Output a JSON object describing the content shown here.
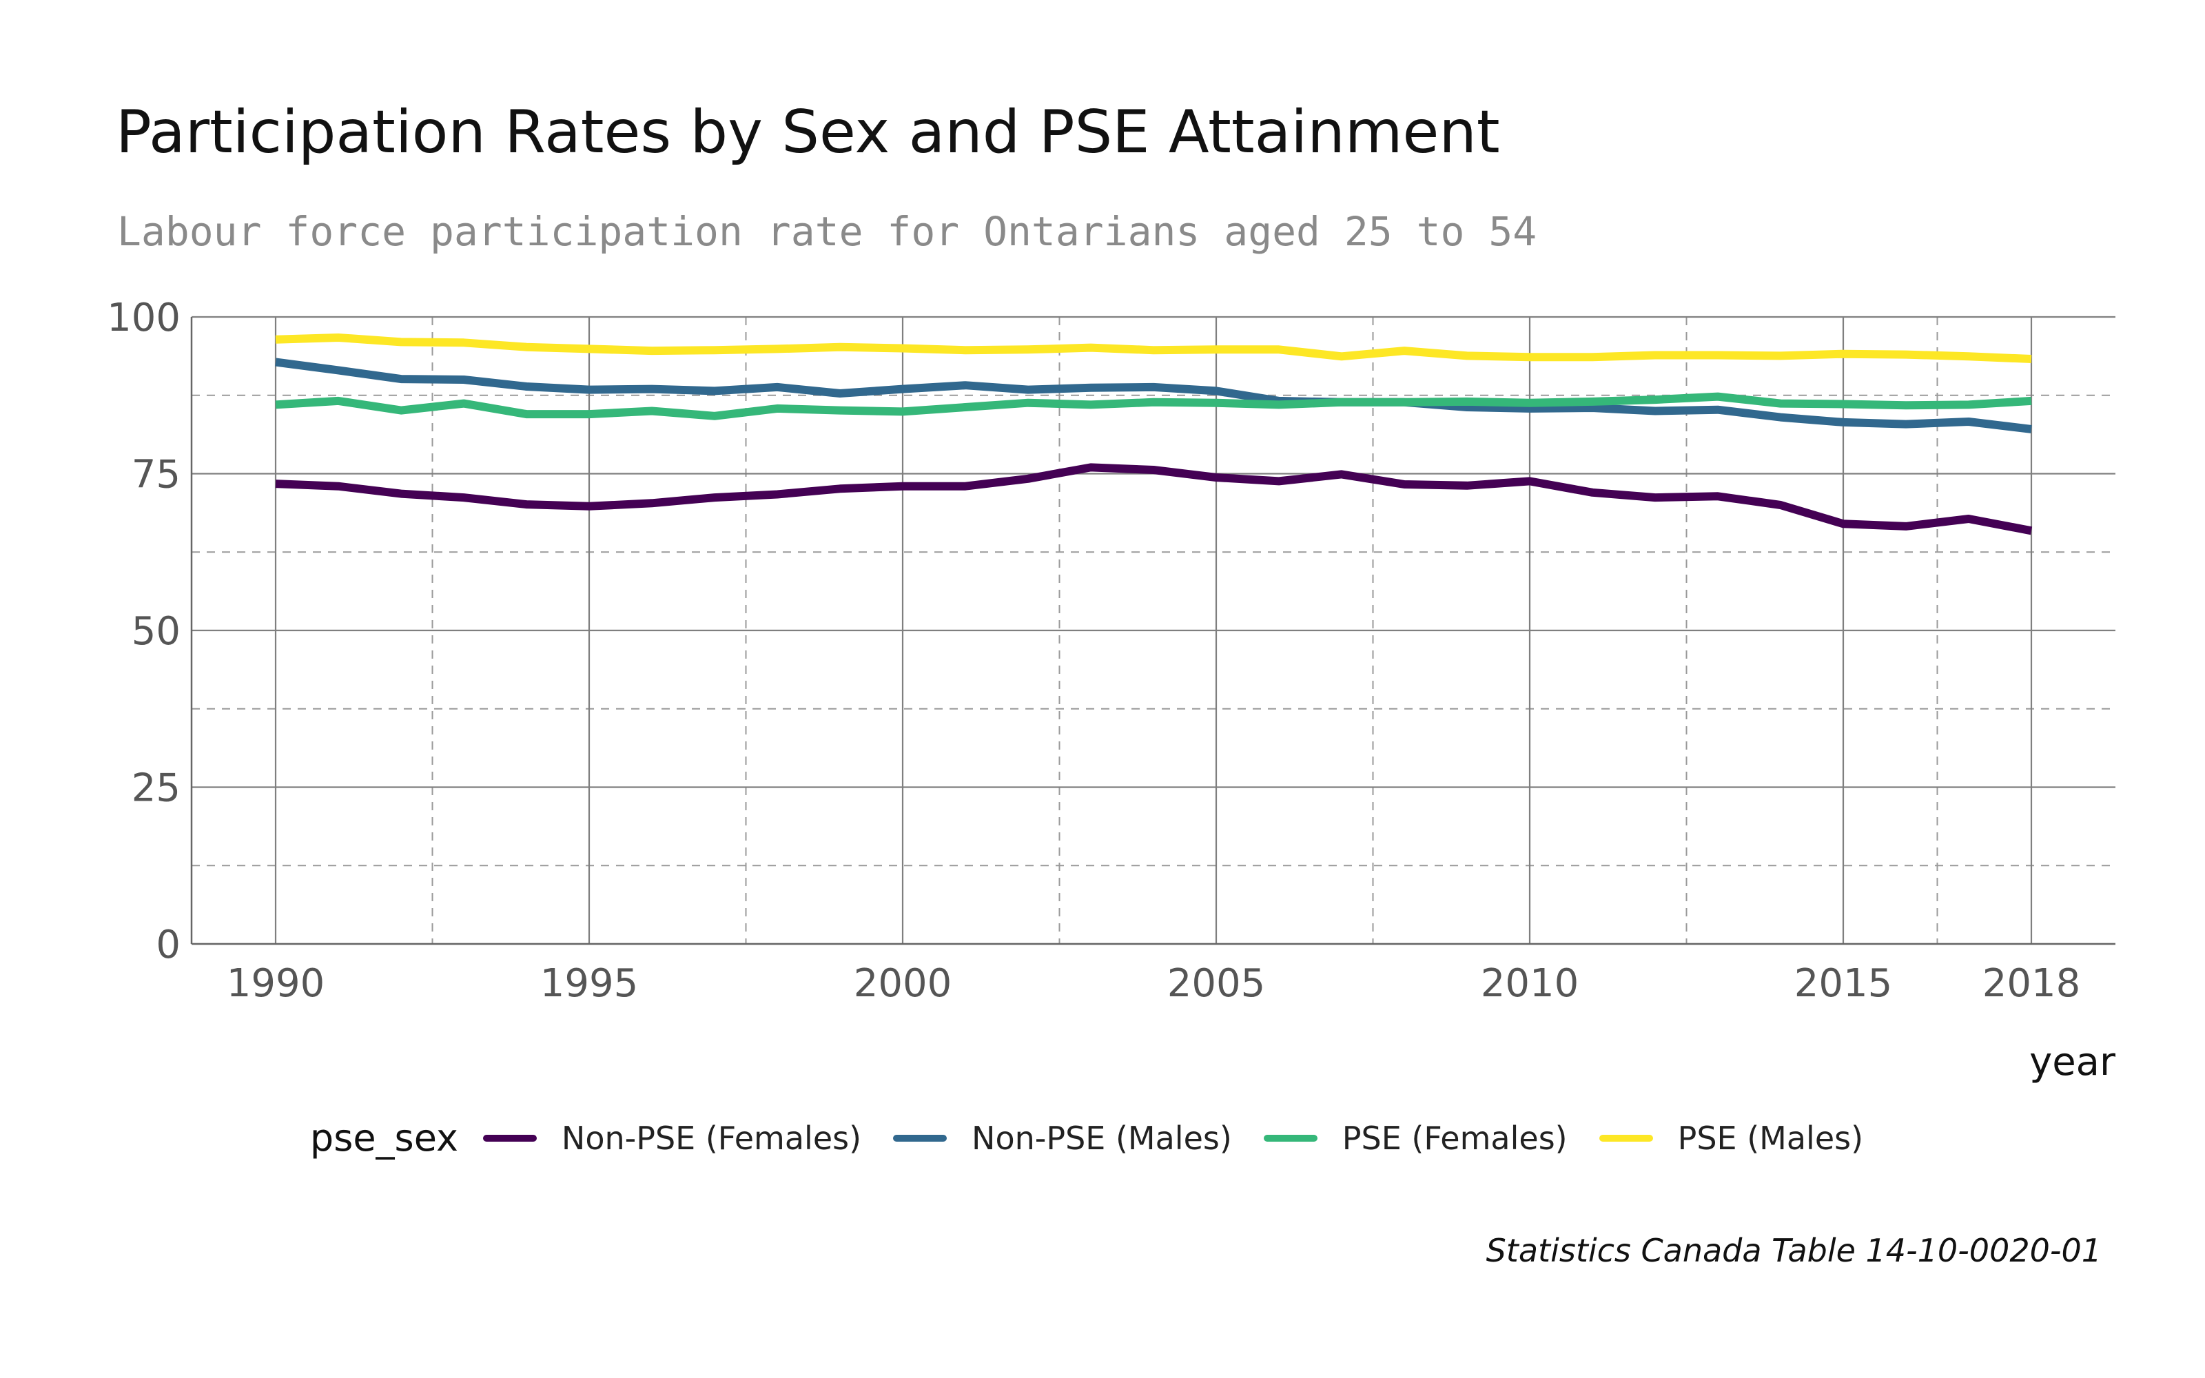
{
  "title": "Participation Rates by Sex and PSE Attainment",
  "subtitle": "Labour force participation rate for Ontarians aged 25 to 54",
  "caption": "Statistics Canada Table 14-10-0020-01",
  "legend": {
    "title": "pse_sex",
    "placement": "bottom"
  },
  "chart_data": {
    "type": "line",
    "xlabel": "year",
    "ylabel": "",
    "xlim": [
      1990,
      2018
    ],
    "ylim": [
      0,
      100
    ],
    "x_ticks": [
      1990,
      1995,
      2000,
      2005,
      2010,
      2015,
      2018
    ],
    "x_minor_ticks": [
      1992.5,
      1997.5,
      2002.5,
      2007.5,
      2012.5,
      2016.5
    ],
    "y_ticks": [
      0,
      25,
      50,
      75,
      100
    ],
    "y_minor_ticks": [
      12.5,
      37.5,
      62.5,
      87.5
    ],
    "grid": true,
    "x": [
      1990,
      1991,
      1992,
      1993,
      1994,
      1995,
      1996,
      1997,
      1998,
      1999,
      2000,
      2001,
      2002,
      2003,
      2004,
      2005,
      2006,
      2007,
      2008,
      2009,
      2010,
      2011,
      2012,
      2013,
      2014,
      2015,
      2016,
      2017,
      2018
    ],
    "series": [
      {
        "name": "Non-PSE (Females)",
        "color": "#440154",
        "values": [
          73.4,
          73.0,
          71.8,
          71.2,
          70.1,
          69.8,
          70.3,
          71.2,
          71.7,
          72.6,
          73.0,
          73.0,
          74.2,
          76.0,
          75.6,
          74.4,
          73.8,
          74.9,
          73.3,
          73.1,
          73.8,
          72.0,
          71.2,
          71.4,
          70.0,
          67.0,
          66.6,
          67.8,
          65.9
        ]
      },
      {
        "name": "Non-PSE (Males)",
        "color": "#31688E",
        "values": [
          92.8,
          91.5,
          90.1,
          90.0,
          88.9,
          88.4,
          88.5,
          88.2,
          88.8,
          87.8,
          88.5,
          89.1,
          88.4,
          88.7,
          88.8,
          88.2,
          86.6,
          86.4,
          86.4,
          85.6,
          85.4,
          85.5,
          85.0,
          85.2,
          84.0,
          83.2,
          82.9,
          83.3,
          82.1
        ]
      },
      {
        "name": "PSE (Females)",
        "color": "#35B779",
        "values": [
          86.0,
          86.6,
          85.1,
          86.2,
          84.5,
          84.5,
          85.0,
          84.2,
          85.4,
          85.1,
          84.9,
          85.6,
          86.3,
          86.0,
          86.4,
          86.3,
          86.0,
          86.4,
          86.4,
          86.5,
          86.3,
          86.5,
          86.8,
          87.3,
          86.2,
          86.1,
          85.9,
          86.0,
          86.6
        ]
      },
      {
        "name": "PSE (Males)",
        "color": "#FDE725",
        "values": [
          96.4,
          96.7,
          96.0,
          95.9,
          95.2,
          94.9,
          94.6,
          94.7,
          94.9,
          95.2,
          95.0,
          94.7,
          94.8,
          95.1,
          94.7,
          94.8,
          94.8,
          93.7,
          94.6,
          93.8,
          93.6,
          93.6,
          93.9,
          93.9,
          93.8,
          94.1,
          94.0,
          93.7,
          93.3
        ]
      }
    ]
  }
}
